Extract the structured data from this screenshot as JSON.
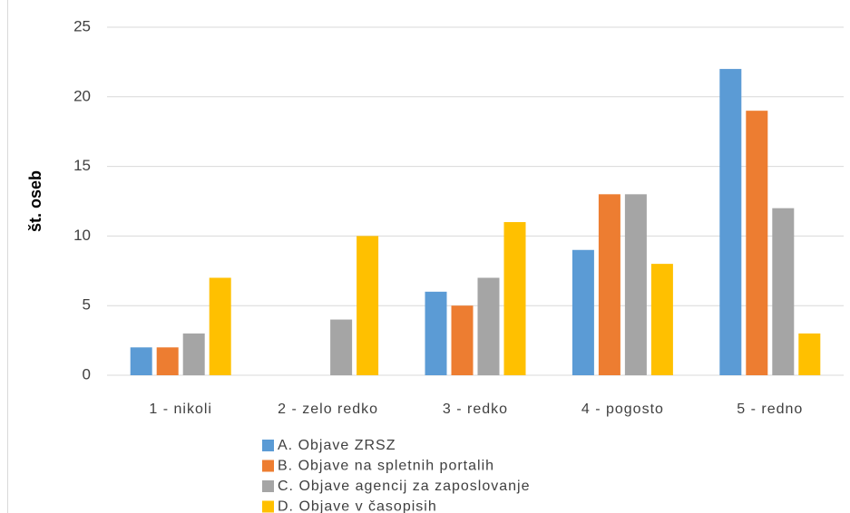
{
  "chart_data": {
    "type": "bar",
    "y_label": "št. oseb",
    "categories": [
      "1 - nikoli",
      "2 - zelo redko",
      "3 - redko",
      "4 - pogosto",
      "5 - redno"
    ],
    "series": [
      {
        "name": "A. Objave ZRSZ",
        "color": "#5b9bd5",
        "values": [
          2,
          0,
          6,
          9,
          22
        ]
      },
      {
        "name": "B. Objave na spletnih portalih",
        "color": "#ed7d31",
        "values": [
          2,
          0,
          5,
          13,
          19
        ]
      },
      {
        "name": "C. Objave agencij za zaposlovanje",
        "color": "#a5a5a5",
        "values": [
          3,
          4,
          7,
          13,
          12
        ]
      },
      {
        "name": "D. Objave v časopisih",
        "color": "#ffc000",
        "values": [
          7,
          10,
          11,
          8,
          3
        ]
      }
    ],
    "ylim": [
      0,
      25
    ],
    "yticks": [
      0,
      5,
      10,
      15,
      20,
      25
    ],
    "grid": true,
    "legend": "bottom"
  }
}
